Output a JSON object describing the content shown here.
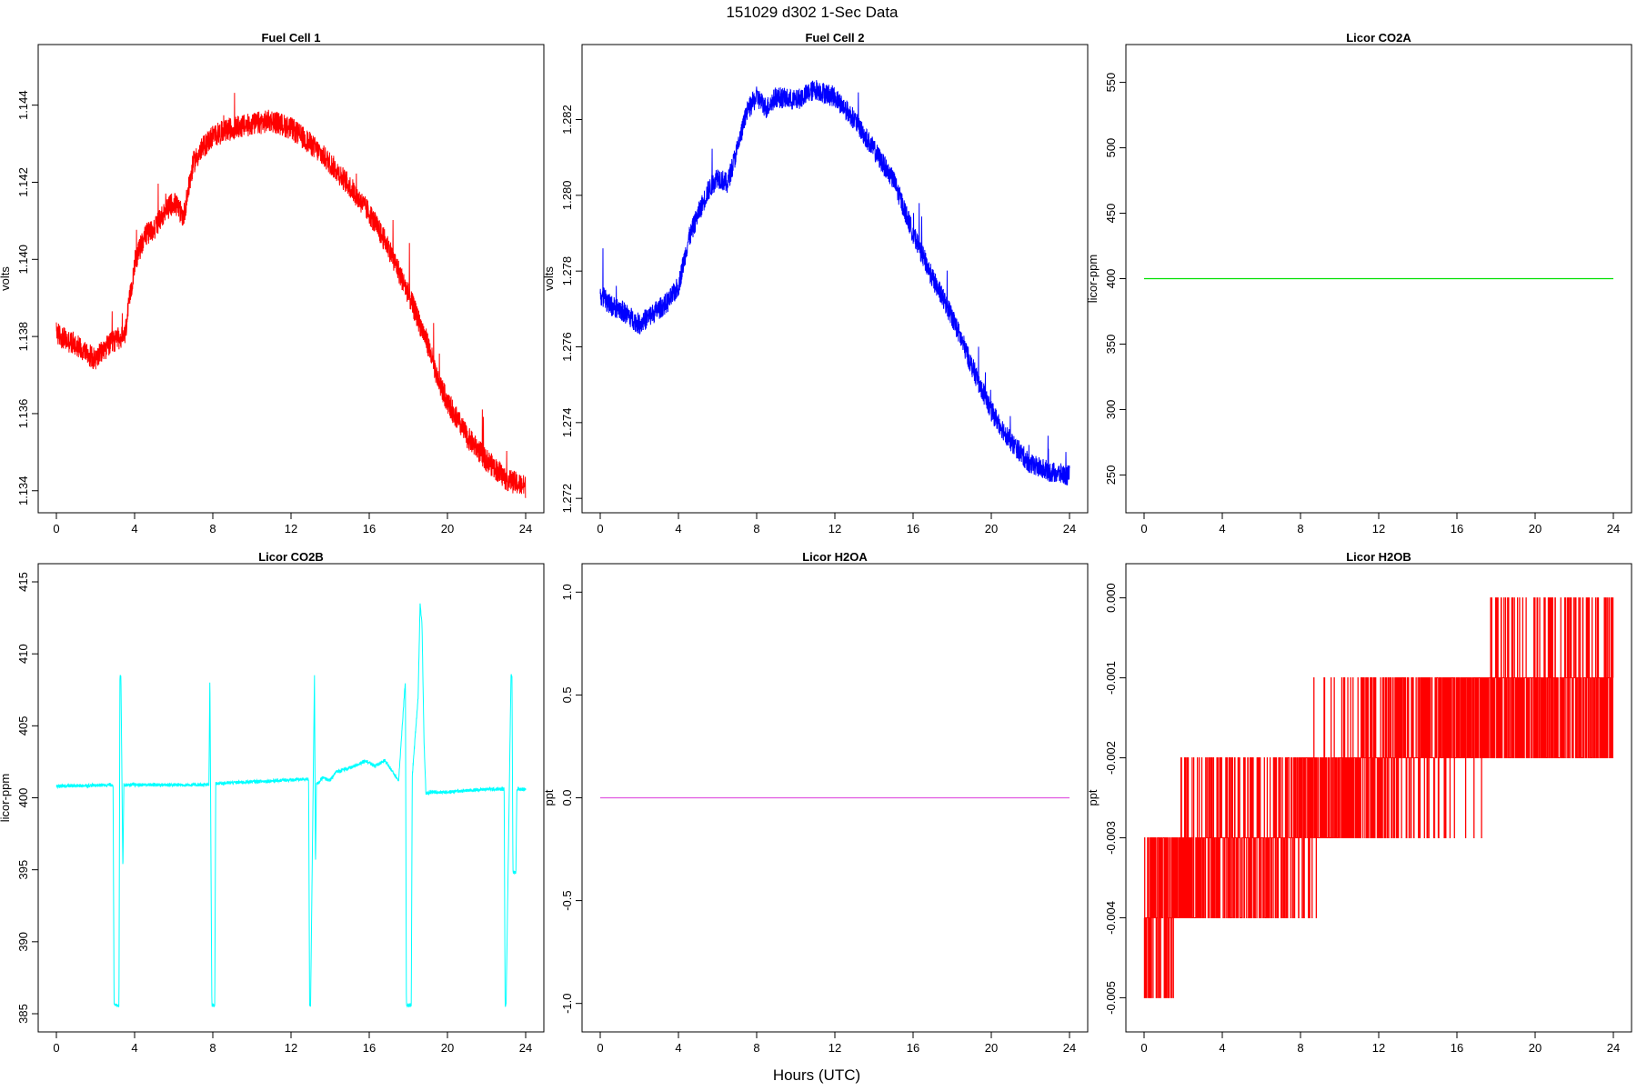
{
  "figure": {
    "title": "151029   d302   1-Sec Data",
    "xlabel": "Hours (UTC)"
  },
  "chart_data": [
    {
      "type": "line",
      "title": "Fuel Cell 1",
      "ylabel": "volts",
      "color": "#ff0000",
      "xlim": [
        0,
        24
      ],
      "ylim": [
        1.1339,
        1.1451
      ],
      "xticks": [
        0,
        4,
        8,
        12,
        16,
        20,
        24
      ],
      "yticks": [
        1.134,
        1.136,
        1.138,
        1.14,
        1.142,
        1.144
      ],
      "ytick_labels": [
        "1.134",
        "1.136",
        "1.138",
        "1.140",
        "1.142",
        "1.144"
      ],
      "noise": 0.0003,
      "series": [
        {
          "x": [
            0,
            0.5,
            1,
            1.5,
            2,
            2.5,
            3,
            3.5,
            4,
            4.5,
            5,
            5.5,
            6,
            6.5,
            7,
            7.5,
            8,
            9,
            10,
            11,
            12,
            13,
            14,
            15,
            16,
            17,
            18,
            19,
            19.5,
            20,
            21,
            22,
            23,
            24
          ],
          "y": [
            1.1381,
            1.1379,
            1.1378,
            1.1376,
            1.1374,
            1.1377,
            1.1379,
            1.138,
            1.1399,
            1.1406,
            1.1408,
            1.1412,
            1.1415,
            1.1411,
            1.1425,
            1.1429,
            1.1432,
            1.1434,
            1.1435,
            1.1436,
            1.1434,
            1.143,
            1.1425,
            1.1419,
            1.1412,
            1.1403,
            1.1391,
            1.1378,
            1.1369,
            1.1363,
            1.1354,
            1.1348,
            1.1343,
            1.1341
          ]
        }
      ]
    },
    {
      "type": "line",
      "title": "Fuel Cell 2",
      "ylabel": "volts",
      "color": "#0000ff",
      "xlim": [
        0,
        24
      ],
      "ylim": [
        1.2721,
        1.2835
      ],
      "xticks": [
        0,
        4,
        8,
        12,
        16,
        20,
        24
      ],
      "yticks": [
        1.272,
        1.274,
        1.276,
        1.278,
        1.28,
        1.282
      ],
      "ytick_labels": [
        "1.272",
        "1.274",
        "1.276",
        "1.278",
        "1.280",
        "1.282"
      ],
      "noise": 0.00028,
      "series": [
        {
          "x": [
            0,
            0.5,
            1,
            1.5,
            2,
            2.5,
            3,
            3.5,
            4,
            4.5,
            5,
            5.5,
            6,
            6.5,
            7,
            7.5,
            8,
            8.5,
            9,
            10,
            11,
            12,
            13,
            14,
            15,
            16,
            17,
            18,
            19,
            20,
            21,
            22,
            23,
            24
          ],
          "y": [
            1.2774,
            1.2771,
            1.277,
            1.2768,
            1.2766,
            1.2768,
            1.277,
            1.2772,
            1.2776,
            1.2788,
            1.2795,
            1.2801,
            1.2805,
            1.2803,
            1.2812,
            1.2822,
            1.2826,
            1.2823,
            1.2826,
            1.2825,
            1.2828,
            1.2826,
            1.282,
            1.2812,
            1.2804,
            1.279,
            1.2778,
            1.2768,
            1.2755,
            1.2743,
            1.2735,
            1.2729,
            1.2727,
            1.2726
          ]
        }
      ]
    },
    {
      "type": "line",
      "title": "Licor CO2A",
      "ylabel": "licor-ppm",
      "color": "#00e000",
      "xlim": [
        0,
        24
      ],
      "ylim": [
        235,
        565
      ],
      "xticks": [
        0,
        4,
        8,
        12,
        16,
        20,
        24
      ],
      "yticks": [
        250,
        300,
        350,
        400,
        450,
        500,
        550
      ],
      "ytick_labels": [
        "250",
        "300",
        "350",
        "400",
        "450",
        "500",
        "550"
      ],
      "noise": 0,
      "series": [
        {
          "x": [
            0,
            24
          ],
          "y": [
            400,
            400
          ]
        }
      ]
    },
    {
      "type": "line",
      "title": "Licor CO2B",
      "ylabel": "licor-ppm",
      "color": "#00ffff",
      "xlim": [
        0,
        24
      ],
      "ylim": [
        385,
        415
      ],
      "xticks": [
        0,
        4,
        8,
        12,
        16,
        20,
        24
      ],
      "yticks": [
        385,
        390,
        395,
        400,
        405,
        410,
        415
      ],
      "ytick_labels": [
        "385",
        "390",
        "395",
        "400",
        "405",
        "410",
        "415"
      ],
      "noise": 0.12,
      "series": [
        {
          "x": [
            0,
            2.9,
            2.95,
            3.0,
            3.2,
            3.25,
            3.3,
            3.4,
            3.45,
            7.8,
            7.85,
            7.95,
            8.1,
            8.15,
            8.2,
            12.9,
            12.95,
            13.0,
            13.2,
            13.25,
            13.3,
            13.4,
            13.45,
            13.6,
            14.0,
            14.3,
            14.8,
            15.3,
            15.8,
            16.3,
            16.8,
            17.2,
            17.5,
            17.85,
            17.9,
            17.95,
            18.15,
            18.2,
            18.5,
            18.6,
            18.7,
            18.8,
            18.9,
            19.2,
            20,
            22,
            22.9,
            22.95,
            23.0,
            23.25,
            23.3,
            23.35,
            23.5,
            23.55,
            24
          ],
          "y": [
            400.8,
            400.9,
            385.6,
            385.6,
            385.6,
            408.5,
            408.5,
            394.9,
            400.9,
            400.9,
            408.5,
            385.6,
            385.6,
            401.0,
            401.0,
            401.3,
            385.6,
            385.6,
            408.6,
            395.1,
            401.0,
            401.0,
            401.1,
            401.4,
            401.2,
            401.8,
            402.0,
            402.2,
            402.6,
            402.2,
            402.6,
            401.8,
            401.2,
            408.2,
            385.6,
            385.6,
            385.6,
            401.5,
            407.0,
            413.5,
            412.0,
            404.0,
            400.3,
            400.4,
            400.4,
            400.6,
            400.6,
            385.6,
            385.6,
            408.5,
            408.5,
            394.8,
            394.8,
            400.6,
            400.6
          ]
        }
      ]
    },
    {
      "type": "line",
      "title": "Licor H2OA",
      "ylabel": "ppt",
      "color": "#e055e0",
      "xlim": [
        0,
        24
      ],
      "ylim": [
        -1.05,
        1.05
      ],
      "xticks": [
        0,
        4,
        8,
        12,
        16,
        20,
        24
      ],
      "yticks": [
        -1.0,
        -0.5,
        0.0,
        0.5,
        1.0
      ],
      "ytick_labels": [
        "-1.0",
        "-0.5",
        "0.0",
        "0.5",
        "1.0"
      ],
      "noise": 0,
      "series": [
        {
          "x": [
            0,
            24
          ],
          "y": [
            0,
            0
          ]
        }
      ]
    },
    {
      "type": "line",
      "title": "Licor H2OB",
      "ylabel": "ppt",
      "color": "#ff0000",
      "xlim": [
        0,
        24
      ],
      "ylim": [
        -0.0052,
        0.0002
      ],
      "xticks": [
        0,
        4,
        8,
        12,
        16,
        20,
        24
      ],
      "yticks": [
        -0.005,
        -0.004,
        -0.003,
        -0.002,
        -0.001,
        0.0
      ],
      "ytick_labels": [
        "-0.005",
        "-0.004",
        "-0.003",
        "-0.002",
        "-0.001",
        "0.000"
      ],
      "noise": 0,
      "series": [
        {
          "x": [
            0,
            1.5,
            2,
            4,
            6,
            8,
            9.5,
            10.5,
            12,
            13.5,
            15,
            16,
            18,
            20,
            22,
            24
          ],
          "y": [
            -0.004,
            -0.0038,
            -0.0033,
            -0.0032,
            -0.003,
            -0.0027,
            -0.0024,
            -0.0022,
            -0.002,
            -0.0018,
            -0.0017,
            -0.0016,
            -0.0014,
            -0.0013,
            -0.0012,
            -0.0011
          ]
        }
      ]
    }
  ]
}
